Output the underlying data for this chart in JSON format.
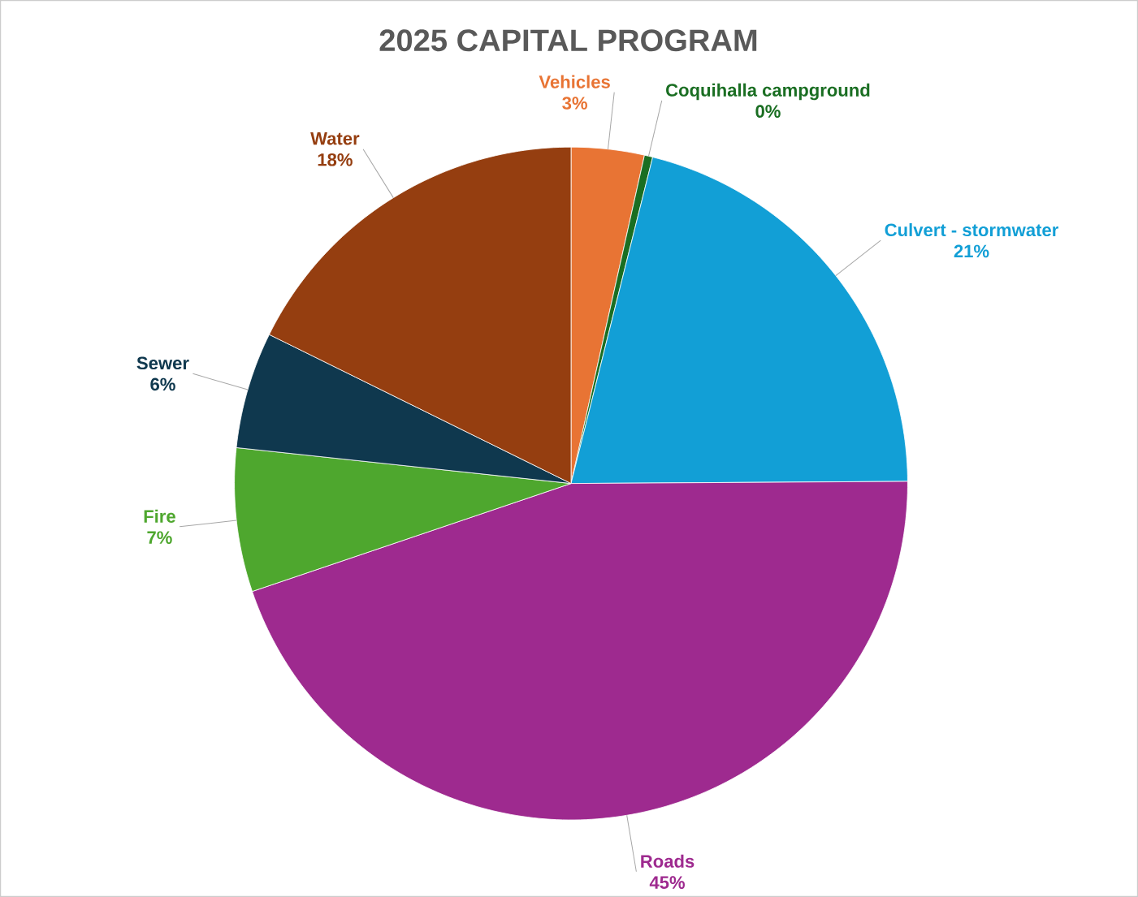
{
  "chart_data": {
    "type": "pie",
    "title": "2025 CAPITAL PROGRAM",
    "categories": [
      "Vehicles",
      "Coquihalla campground",
      "Culvert  - stormwater",
      "Roads",
      "Fire",
      "Sewer",
      "Water"
    ],
    "values": [
      3.5,
      0.4,
      21.0,
      44.9,
      6.9,
      5.6,
      17.7
    ],
    "value_labels": [
      "3%",
      "0%",
      "21%",
      "45%",
      "7%",
      "6%",
      "18%"
    ],
    "colors": [
      "#e87434",
      "#1a6e22",
      "#129fd6",
      "#9e2a8f",
      "#4ea72e",
      "#0f384e",
      "#953e10"
    ]
  }
}
